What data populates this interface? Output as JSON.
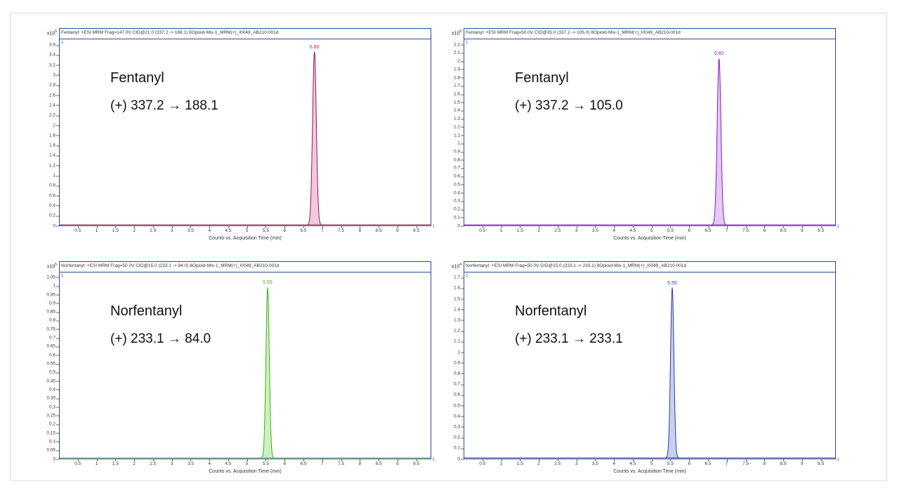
{
  "shared": {
    "y_axis_prefix": "x10",
    "trace_marker": "1",
    "border_color": "#2e4a96"
  },
  "chart_data": [
    {
      "type": "area",
      "title": "Fentanyl: +ESI MRM Frag=147.0V CID@21.0 (337.2 -> 188.1) 8Opioid-Mix-1_MRM(+)_I0049_AB210-001d",
      "compound": "Fentanyl",
      "transition_label": "(+) 337.2 → 188.1",
      "xlabel": "Counts vs. Acquisition Time (min)",
      "y_exponent": "5",
      "y_ticks": [
        "0",
        "0.2",
        "0.4",
        "0.6",
        "0.8",
        "1",
        "1.2",
        "1.4",
        "1.6",
        "1.8",
        "2",
        "2.2",
        "2.4",
        "2.6",
        "2.8",
        "3",
        "3.2",
        "3.4",
        "3.6"
      ],
      "y_axis_max": 3.72,
      "x_ticks": [
        "0.5",
        "1",
        "1.5",
        "2",
        "2.5",
        "3",
        "3.5",
        "4",
        "4.5",
        "5",
        "5.5",
        "6",
        "6.5",
        "7",
        "7.5",
        "8",
        "8.5",
        "9",
        "9.5"
      ],
      "x_axis_max": 9.9,
      "peak": {
        "rt": 6.8,
        "rt_label": "6.80",
        "apex": 3.5,
        "sigma_min": 0.05
      },
      "colors": {
        "line": "#8e1a55",
        "fill": "#f3c8da",
        "label": "#b42a68"
      }
    },
    {
      "type": "area",
      "title": "Fentanyl: +ESI MRM Frag=50.0V CID@35.0 (337.2 -> 105.0) 8Opioid-Mix-1_MRM(+)_I0049_AB210-001d",
      "compound": "Fentanyl",
      "transition_label": "(+) 337.2 → 105.0",
      "xlabel": "Counts vs. Acquisition Time (min)",
      "y_exponent": "5",
      "y_ticks": [
        "0",
        "0.1",
        "0.2",
        "0.3",
        "0.4",
        "0.5",
        "0.6",
        "0.7",
        "0.8",
        "0.9",
        "1",
        "1.1",
        "1.2",
        "1.3",
        "1.4",
        "1.5",
        "1.6",
        "1.7",
        "1.8",
        "1.9",
        "2",
        "2.1",
        "2.2"
      ],
      "y_axis_max": 2.27,
      "x_ticks": [
        "0.5",
        "1",
        "1.5",
        "2",
        "2.5",
        "3",
        "3.5",
        "4",
        "4.5",
        "5",
        "5.5",
        "6",
        "6.5",
        "7",
        "7.5",
        "8",
        "8.5",
        "9",
        "9.5"
      ],
      "x_axis_max": 9.9,
      "peak": {
        "rt": 6.8,
        "rt_label": "6.80",
        "apex": 2.05,
        "sigma_min": 0.05
      },
      "colors": {
        "line": "#8c14c4",
        "fill": "#e7c9f7",
        "label": "#9326cc"
      }
    },
    {
      "type": "area",
      "title": "Norfentanyl: +ESI MRM Frag=50.0V CID@15.0 (233.1 -> 84.0) 8Opioid-Mix-1_MRM(+)_I0049_AB210-001d",
      "compound": "Norfentanyl",
      "transition_label": "(+) 233.1 → 84.0",
      "xlabel": "Counts vs. Acquisition Time (min)",
      "y_exponent": "5",
      "y_ticks": [
        "0",
        "0.05",
        "0.1",
        "0.15",
        "0.2",
        "0.25",
        "0.3",
        "0.35",
        "0.4",
        "0.45",
        "0.5",
        "0.55",
        "0.6",
        "0.65",
        "0.7",
        "0.75",
        "0.8",
        "0.85",
        "0.9",
        "0.95",
        "1",
        "1.05"
      ],
      "y_axis_max": 1.08,
      "x_ticks": [
        "0.5",
        "1",
        "1.5",
        "2",
        "2.5",
        "3",
        "3.5",
        "4",
        "4.5",
        "5",
        "5.5",
        "6",
        "6.5",
        "7",
        "7.5",
        "8",
        "8.5",
        "9",
        "9.5"
      ],
      "x_axis_max": 9.9,
      "peak": {
        "rt": 5.55,
        "rt_label": "5.55",
        "apex": 1.0,
        "sigma_min": 0.045
      },
      "colors": {
        "line": "#3fae1e",
        "fill": "#ccf2bc",
        "label": "#3fae1e"
      }
    },
    {
      "type": "area",
      "title": "Norfentanyl: +ESI MRM Frag=50.0V CID@15.0 (233.1 -> 233.1) 8Opioid-Mix-1_MRM(+)_I0049_AB210-001d",
      "compound": "Norfentanyl",
      "transition_label": "(+) 233.1 → 233.1",
      "xlabel": "Counts vs. Acquisition Time (min)",
      "y_exponent": "4",
      "y_ticks": [
        "0",
        "0.1",
        "0.2",
        "0.3",
        "0.4",
        "0.5",
        "0.6",
        "0.7",
        "0.8",
        "0.9",
        "1",
        "1.1",
        "1.2",
        "1.3",
        "1.4",
        "1.5",
        "1.6",
        "1.7"
      ],
      "y_axis_max": 1.75,
      "x_ticks": [
        "0.5",
        "1",
        "1.5",
        "2",
        "2.5",
        "3",
        "3.5",
        "4",
        "4.5",
        "5",
        "5.5",
        "6",
        "6.5",
        "7",
        "7.5",
        "8",
        "8.5",
        "9",
        "9.5"
      ],
      "x_axis_max": 9.9,
      "peak": {
        "rt": 5.55,
        "rt_label": "5.55",
        "apex": 1.62,
        "sigma_min": 0.045
      },
      "colors": {
        "line": "#2b3e9b",
        "fill": "#c7d0ee",
        "label": "#2b3e9b"
      }
    }
  ]
}
